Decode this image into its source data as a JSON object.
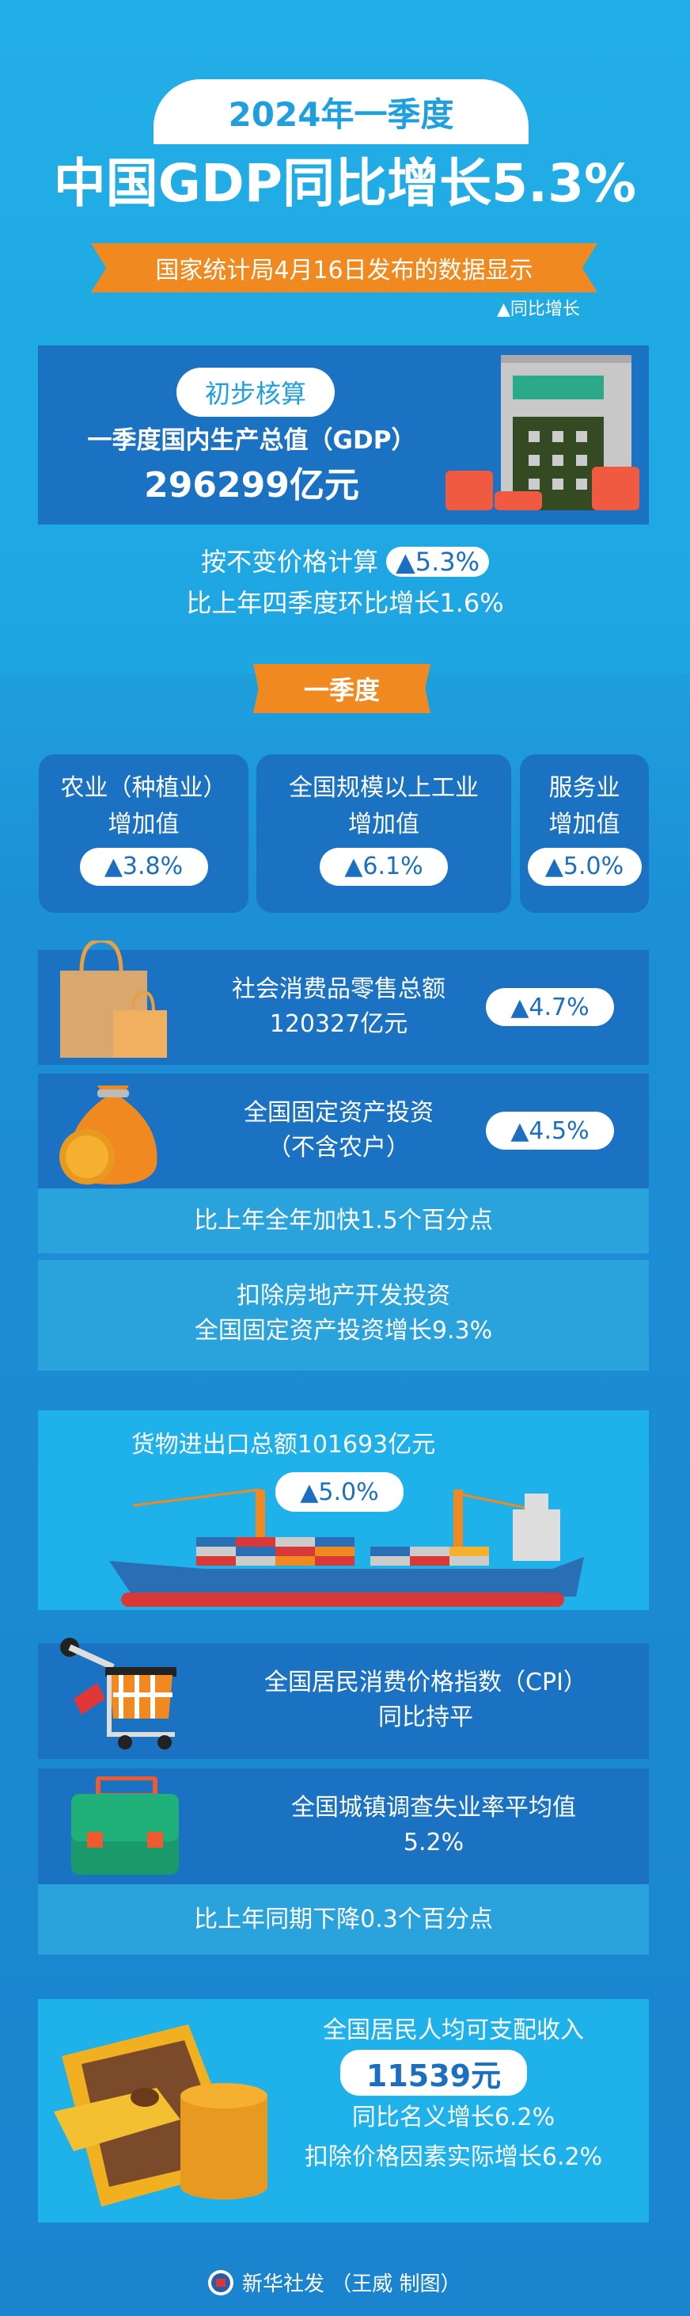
{
  "header": {
    "title_pill": "2024年一季度",
    "headline": "中国GDP同比增长5.3%",
    "ribbon": "国家统计局4月16日发布的数据显示",
    "legend": "▲同比增长"
  },
  "gdp": {
    "tag": "初步核算",
    "label": "一季度国内生产总值（GDP）",
    "value": "296299亿元",
    "line1": "按不变价格计算",
    "growth": "▲5.3%",
    "line2": "比上年四季度环比增长1.6%"
  },
  "section": {
    "ribbon": "一季度"
  },
  "cards": [
    {
      "line1": "农业（种植业）",
      "line2": "增加值",
      "growth": "▲3.8%"
    },
    {
      "line1": "全国规模以上工业",
      "line2": "增加值",
      "growth": "▲6.1%"
    },
    {
      "line1": "服务业",
      "line2": "增加值",
      "growth": "▲5.0%"
    }
  ],
  "retail": {
    "line1": "社会消费品零售总额",
    "line2": "120327亿元",
    "growth": "▲4.7%"
  },
  "investment": {
    "line1": "全国固定资产投资",
    "line2": "（不含农户）",
    "growth": "▲4.5%",
    "note1": "比上年全年加快1.5个百分点",
    "note2a": "扣除房地产开发投资",
    "note2b": "全国固定资产投资增长9.3%"
  },
  "trade": {
    "line1": "货物进出口总额101693亿元",
    "growth": "▲5.0%"
  },
  "cpi": {
    "line1": "全国居民消费价格指数（CPI）",
    "line2": "同比持平"
  },
  "unemployment": {
    "line1": "全国城镇调查失业率平均值",
    "line2": "5.2%",
    "note": "比上年同期下降0.3个百分点"
  },
  "income": {
    "line1": "全国居民人均可支配收入",
    "value": "11539元",
    "line2": "同比名义增长6.2%",
    "line3": "扣除价格因素实际增长6.2%"
  },
  "footer": {
    "credit": "新华社发 （王威 制图）"
  },
  "colors": {
    "accent_orange": "#f08a20",
    "box_blue": "#1b72c3",
    "bg_blue": "#1fa9e4"
  }
}
